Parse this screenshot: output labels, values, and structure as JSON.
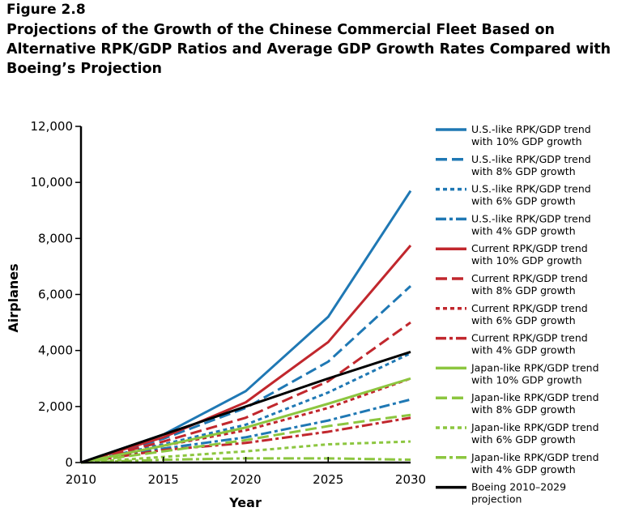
{
  "figure": {
    "label": "Figure 2.8",
    "title": "Projections of the Growth of the Chinese Commercial Fleet Based on Alternative RPK/GDP Ratios and Average GDP Growth Rates Compared with Boeing’s Projection"
  },
  "chart_data": {
    "type": "line",
    "xlabel": "Year",
    "ylabel": "Airplanes",
    "x": [
      2010,
      2015,
      2020,
      2025,
      2030
    ],
    "xlim": [
      2010,
      2030
    ],
    "ylim": [
      0,
      12000
    ],
    "xticks": [
      "2010",
      "2015",
      "2020",
      "2025",
      "2030"
    ],
    "yticks": [
      "0",
      "2,000",
      "4,000",
      "6,000",
      "8,000",
      "10,000",
      "12,000"
    ],
    "ytick_values": [
      0,
      2000,
      4000,
      6000,
      8000,
      10000,
      12000
    ],
    "grid": false,
    "legend_position": "right",
    "series": [
      {
        "name": "U.S.-like RPK/GDP trend with 10% GDP growth",
        "color": "#1f78b4",
        "dash": "solid",
        "values": [
          0,
          1000,
          2550,
          5200,
          9700
        ]
      },
      {
        "name": "U.S.-like RPK/GDP trend with 8% GDP growth",
        "color": "#1f78b4",
        "dash": "dashed",
        "values": [
          0,
          850,
          1950,
          3600,
          6300
        ]
      },
      {
        "name": "U.S.-like RPK/GDP trend with 6% GDP growth",
        "color": "#1f78b4",
        "dash": "dotted",
        "values": [
          0,
          650,
          1350,
          2500,
          3900
        ]
      },
      {
        "name": "U.S.-like RPK/GDP trend with 4% GDP growth",
        "color": "#1f78b4",
        "dash": "dashdot",
        "values": [
          0,
          500,
          900,
          1500,
          2250
        ]
      },
      {
        "name": "Current RPK/GDP trend with 10% GDP growth",
        "color": "#c1272d",
        "dash": "solid",
        "values": [
          0,
          900,
          2150,
          4300,
          7750
        ]
      },
      {
        "name": "Current RPK/GDP trend with 8% GDP growth",
        "color": "#c1272d",
        "dash": "dashed",
        "values": [
          0,
          750,
          1600,
          2900,
          5000
        ]
      },
      {
        "name": "Current RPK/GDP trend with 6% GDP growth",
        "color": "#c1272d",
        "dash": "dotted",
        "values": [
          0,
          600,
          1150,
          1950,
          3000
        ]
      },
      {
        "name": "Current RPK/GDP trend with 4% GDP growth",
        "color": "#c1272d",
        "dash": "dashdot",
        "values": [
          0,
          450,
          700,
          1100,
          1600
        ]
      },
      {
        "name": "Japan-like RPK/GDP trend with 10% GDP growth",
        "color": "#8cc63f",
        "dash": "solid",
        "values": [
          0,
          600,
          1250,
          2100,
          3000
        ]
      },
      {
        "name": "Japan-like RPK/GDP trend with 8% GDP growth",
        "color": "#8cc63f",
        "dash": "dashed",
        "values": [
          0,
          400,
          800,
          1300,
          1700
        ]
      },
      {
        "name": "Japan-like RPK/GDP trend with 6% GDP growth",
        "color": "#8cc63f",
        "dash": "dotted",
        "values": [
          0,
          200,
          400,
          650,
          750
        ]
      },
      {
        "name": "Japan-like RPK/GDP trend with 4% GDP growth",
        "color": "#8cc63f",
        "dash": "dashdot",
        "values": [
          0,
          100,
          150,
          150,
          100
        ]
      },
      {
        "name": "Boeing 2010–2029 projection",
        "color": "#000000",
        "dash": "solid",
        "values": [
          0,
          1000,
          2000,
          3000,
          3950
        ]
      }
    ],
    "legend_lines": [
      [
        "U.S.-like RPK/GDP trend",
        "with 10% GDP growth"
      ],
      [
        "U.S.-like RPK/GDP trend",
        "with 8% GDP growth"
      ],
      [
        "U.S.-like RPK/GDP trend",
        "with 6% GDP growth"
      ],
      [
        "U.S.-like RPK/GDP trend",
        "with 4% GDP growth"
      ],
      [
        "Current RPK/GDP trend",
        "with 10% GDP growth"
      ],
      [
        "Current RPK/GDP trend",
        "with 8% GDP growth"
      ],
      [
        "Current RPK/GDP trend",
        "with 6% GDP growth"
      ],
      [
        "Current RPK/GDP trend",
        "with 4% GDP growth"
      ],
      [
        "Japan-like RPK/GDP trend",
        "with 10% GDP growth"
      ],
      [
        "Japan-like RPK/GDP trend",
        "with 8% GDP growth"
      ],
      [
        "Japan-like RPK/GDP trend",
        "with 6% GDP growth"
      ],
      [
        "Japan-like RPK/GDP trend",
        "with 4% GDP growth"
      ],
      [
        "Boeing 2010–2029",
        "projection"
      ]
    ]
  }
}
